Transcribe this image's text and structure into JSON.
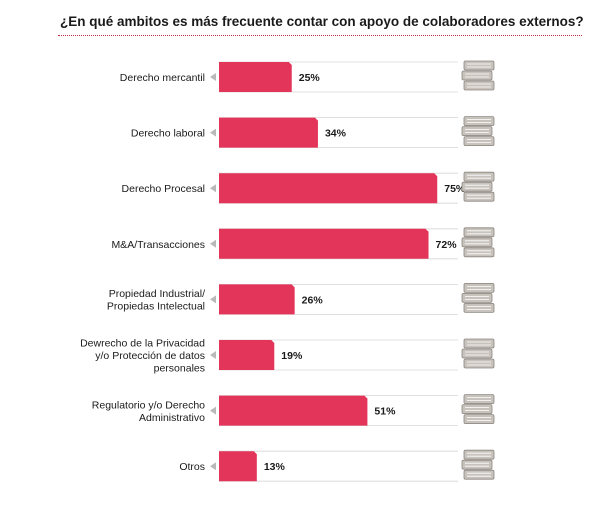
{
  "title": "¿En qué ambitos es más frecuente contar con apoyo de colaboradores externos?",
  "colors": {
    "bar": "#e3355a",
    "track_border": "#d6d6d6",
    "books_fill": "#c7c2bc",
    "books_stroke": "#8c8580",
    "title_rule": "#c4283d",
    "arrow": "#b9b9b9"
  },
  "icons": {
    "row_icon": "stacked-books-icon",
    "row_marker": "triangle-left-icon"
  },
  "chart_data": {
    "type": "bar",
    "orientation": "horizontal",
    "title": "¿En qué ambitos es más frecuente contar con apoyo de colaboradores externos?",
    "xlim": [
      0,
      100
    ],
    "unit": "%",
    "grid": false,
    "categories": [
      [
        "Derecho mercantil"
      ],
      [
        "Derecho laboral"
      ],
      [
        "Derecho Procesal"
      ],
      [
        "M&A/Transacciones"
      ],
      [
        "Propiedad Industrial/",
        "Propiedas Intelectual"
      ],
      [
        "Dewrecho de la Privacidad",
        "y/o Protección de datos",
        "personales"
      ],
      [
        "Regulatorio y/o Derecho",
        "Administrativo"
      ],
      [
        "Otros"
      ]
    ],
    "values": [
      25,
      34,
      75,
      72,
      26,
      19,
      51,
      13
    ],
    "value_labels": [
      "25%",
      "34%",
      "75%",
      "72%",
      "26%",
      "19%",
      "51%",
      "13%"
    ]
  }
}
